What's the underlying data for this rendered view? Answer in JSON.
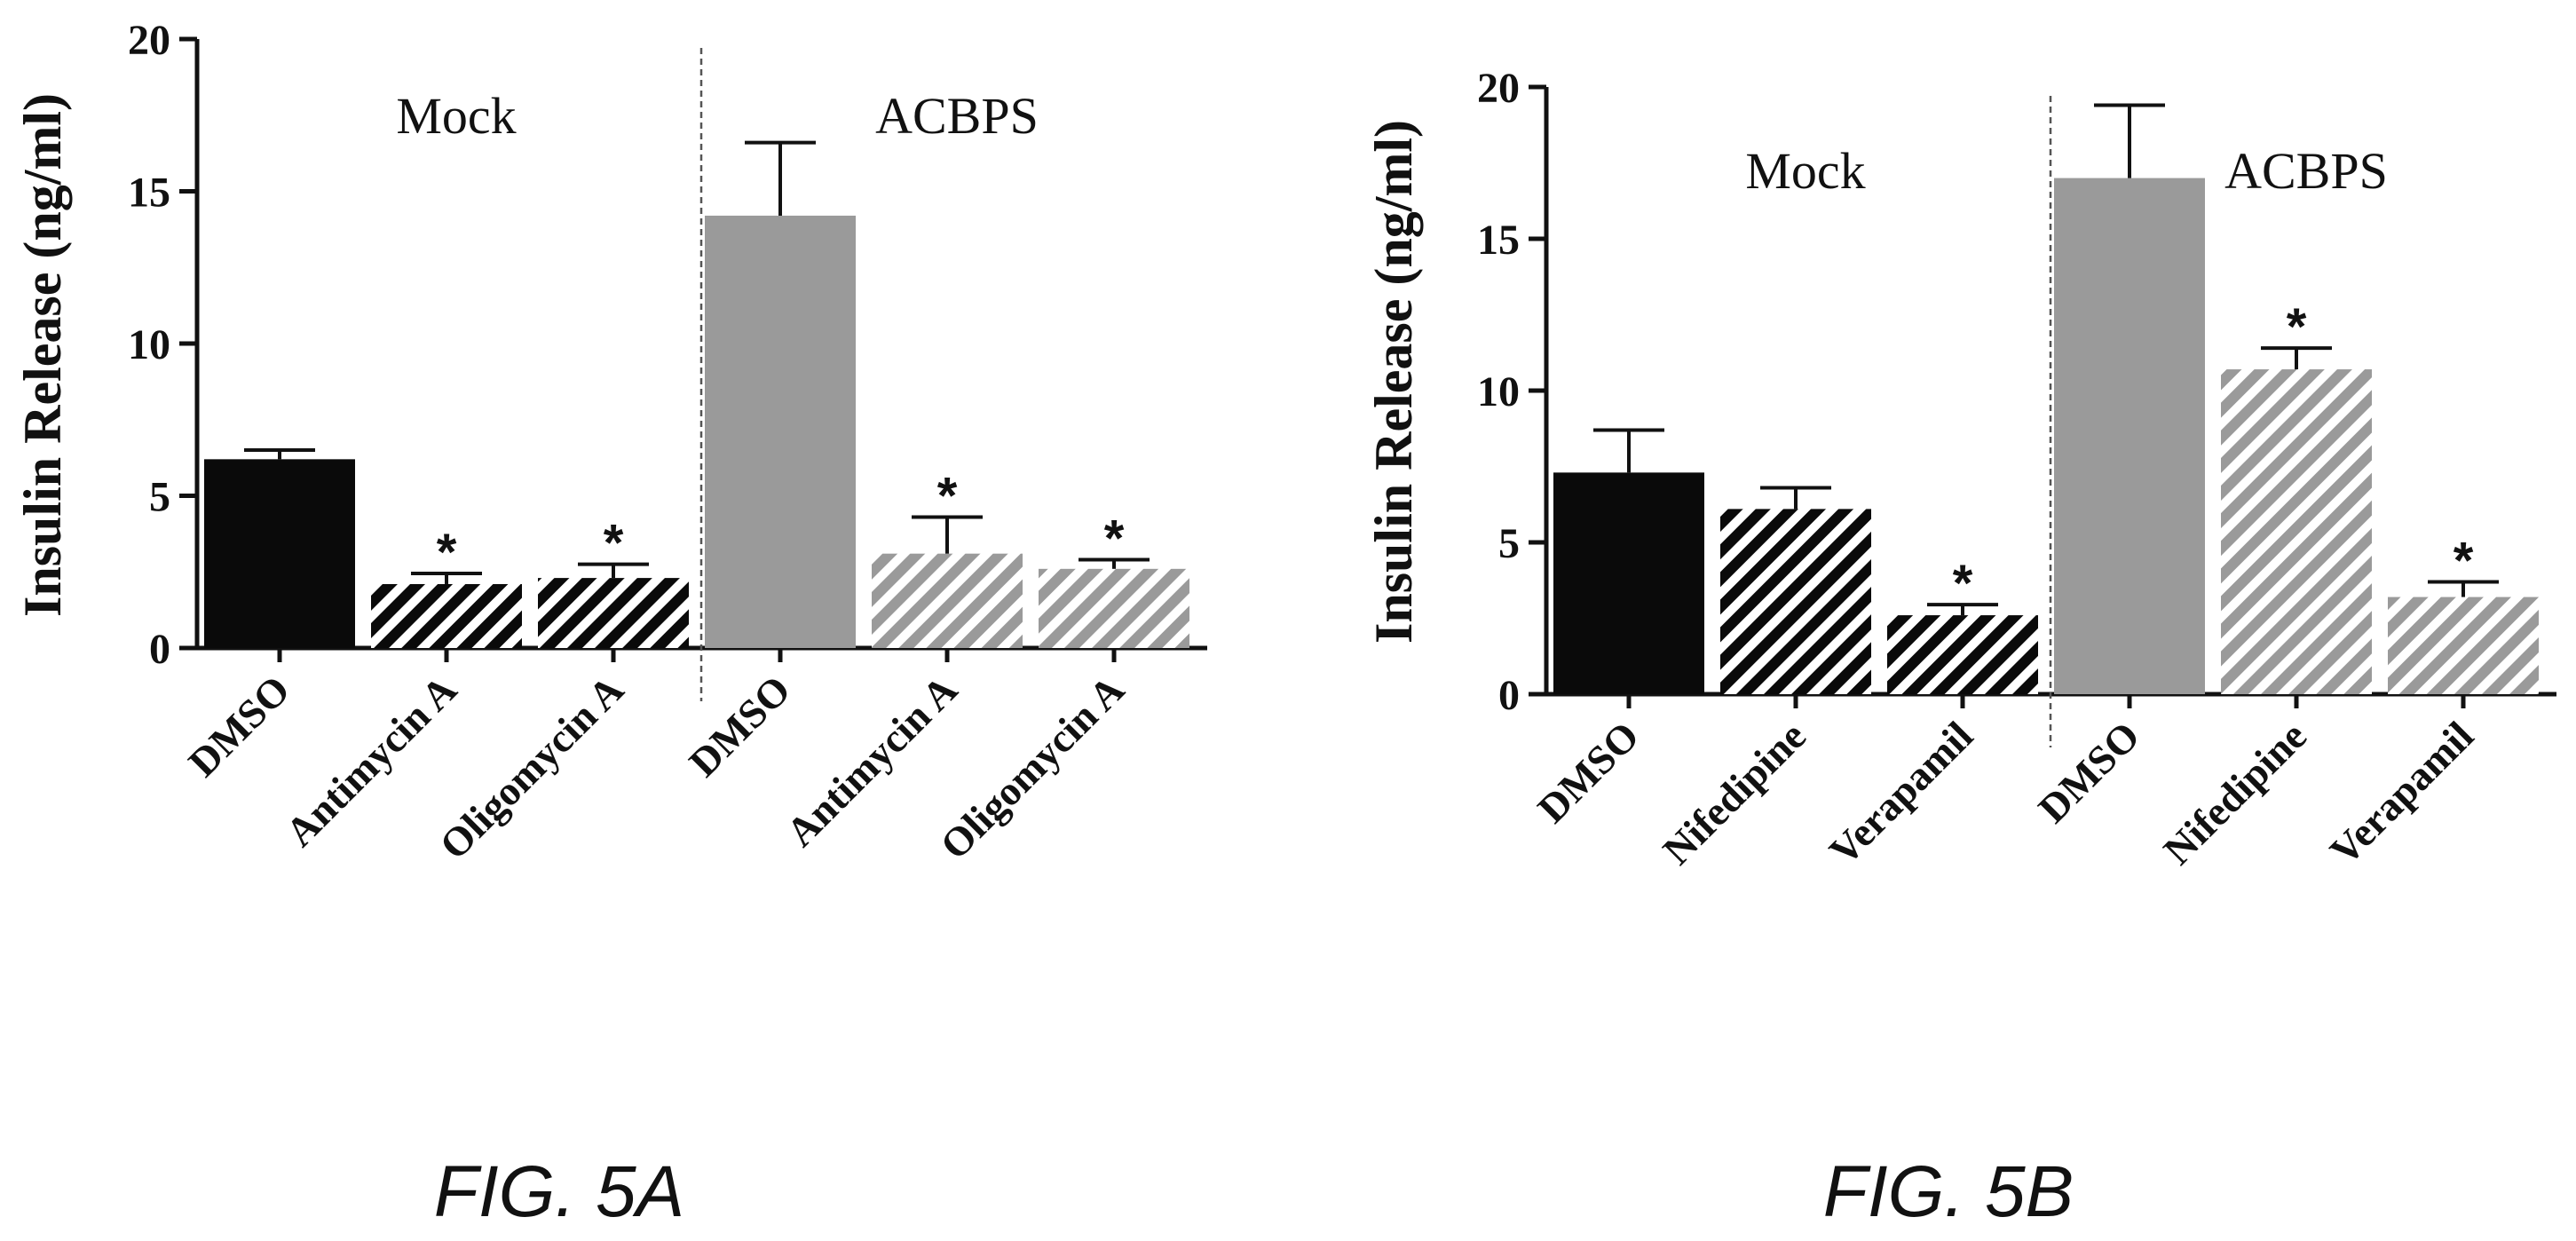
{
  "figures": [
    {
      "caption": "FIG. 5A"
    },
    {
      "caption": "FIG. 5B"
    }
  ],
  "colors": {
    "black_bar": "#0a0a0a",
    "gray_bar": "#9a9a9a",
    "axis": "#111111",
    "divider": "#555555"
  },
  "chart_data": [
    {
      "type": "bar",
      "ylabel": "Insulin Release  (ng/ml)",
      "ylim": [
        0,
        20
      ],
      "yticks": [
        "0",
        "5",
        "10",
        "15",
        "20"
      ],
      "groups": [
        "Mock",
        "ACBPS"
      ],
      "categories": [
        "DMSO",
        "Antimycin A",
        "Oligomycin A",
        "DMSO",
        "Antimycin A",
        "Oligomycin A"
      ],
      "values": [
        6.2,
        2.1,
        2.3,
        14.2,
        3.1,
        2.6
      ],
      "errors": [
        0.3,
        0.35,
        0.45,
        2.4,
        1.2,
        0.3
      ],
      "significance": [
        "",
        "*",
        "*",
        "",
        "*",
        "*"
      ],
      "fill_styles": [
        "solid-black",
        "hatch-black",
        "hatch-black",
        "solid-gray",
        "hatch-gray",
        "hatch-gray"
      ],
      "grid": false
    },
    {
      "type": "bar",
      "ylabel": "Insulin Release  (ng/ml)",
      "ylim": [
        0,
        20
      ],
      "yticks": [
        "0",
        "5",
        "10",
        "15",
        "20"
      ],
      "groups": [
        "Mock",
        "ACBPS"
      ],
      "categories": [
        "DMSO",
        "Nifedipine",
        "Verapamil",
        "DMSO",
        "Nifedipine",
        "Verapamil"
      ],
      "values": [
        7.3,
        6.1,
        2.6,
        17.0,
        10.7,
        3.2
      ],
      "errors": [
        1.4,
        0.7,
        0.35,
        2.4,
        0.7,
        0.5
      ],
      "significance": [
        "",
        "",
        "*",
        "",
        "*",
        "*"
      ],
      "fill_styles": [
        "solid-black",
        "hatch-black",
        "hatch-black",
        "solid-gray",
        "hatch-gray",
        "hatch-gray"
      ],
      "grid": false
    }
  ]
}
